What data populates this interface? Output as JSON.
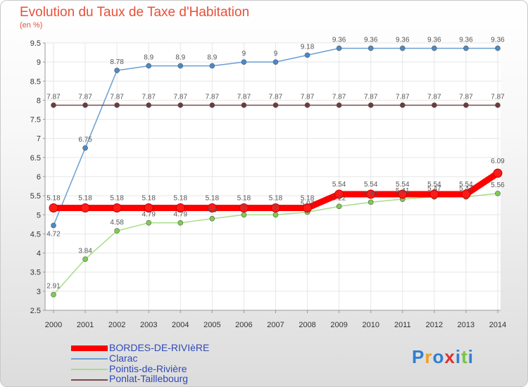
{
  "title": "Evolution du Taux de Taxe d'Habitation",
  "subtitle": "(en %)",
  "brand": "Proxiti",
  "chart_data": {
    "type": "line",
    "title": "Evolution du Taux de Taxe d'Habitation",
    "ylabel": "(en %)",
    "xlabel": "",
    "ylim": [
      2.5,
      9.5
    ],
    "yticks": [
      "2.5",
      "3",
      "3.5",
      "4",
      "4.5",
      "5",
      "5.5",
      "6",
      "6.5",
      "7",
      "7.5",
      "8",
      "8.5",
      "9",
      "9.5"
    ],
    "categories": [
      "2000",
      "2001",
      "2002",
      "2003",
      "2004",
      "2005",
      "2006",
      "2007",
      "2008",
      "2009",
      "2010",
      "2011",
      "2012",
      "2013",
      "2014"
    ],
    "series": [
      {
        "name": "Clarac",
        "color": "#6b9fd4",
        "marker": "#4a8ac9",
        "values": [
          4.72,
          6.75,
          8.78,
          8.9,
          8.9,
          8.9,
          9,
          9,
          9.18,
          9.36,
          9.36,
          9.36,
          9.36,
          9.36,
          9.36
        ],
        "labels": [
          "4.72",
          "6.75",
          "8.78",
          "8.9",
          "8.9",
          "8.9",
          "9",
          "9",
          "9.18",
          "9.36",
          "9.36",
          "9.36",
          "9.36",
          "9.36",
          "9.36"
        ]
      },
      {
        "name": "Pointis-de-Rivière",
        "color": "#a8dd8a",
        "marker": "#7ccf4a",
        "values": [
          2.91,
          3.84,
          4.58,
          4.79,
          4.79,
          4.9,
          5.0,
          5.0,
          5.07,
          5.22,
          5.33,
          5.41,
          5.47,
          5.47,
          5.56
        ],
        "labels": [
          "2.91",
          "3.84",
          "4.58",
          "4.79",
          "4.79",
          "4.9",
          "5",
          "5",
          "5.07",
          "5.22",
          "5.33",
          "5.41",
          "5.47",
          "5.47",
          "5.56"
        ]
      },
      {
        "name": "Ponlat-Taillebourg",
        "color": "#7a4a4a",
        "marker": "#6e3b3b",
        "values": [
          7.87,
          7.87,
          7.87,
          7.87,
          7.87,
          7.87,
          7.87,
          7.87,
          7.87,
          7.87,
          7.87,
          7.87,
          7.87,
          7.87,
          7.87
        ],
        "labels": [
          "7.87",
          "7.87",
          "7.87",
          "7.87",
          "7.87",
          "7.87",
          "7.87",
          "7.87",
          "7.87",
          "7.87",
          "7.87",
          "7.87",
          "7.87",
          "7.87",
          "7.87"
        ]
      },
      {
        "name": "BORDES-DE-RIVIèRE",
        "color": "#ff0000",
        "marker": "#ff1a1a",
        "values": [
          5.18,
          5.18,
          5.18,
          5.18,
          5.18,
          5.18,
          5.18,
          5.18,
          5.18,
          5.54,
          5.54,
          5.54,
          5.54,
          5.54,
          6.09
        ],
        "labels": [
          "5.18",
          "5.18",
          "5.18",
          "5.18",
          "5.18",
          "5.18",
          "5.18",
          "5.18",
          "5.18",
          "5.54",
          "5.54",
          "5.54",
          "5.54",
          "5.54",
          "6.09"
        ]
      }
    ],
    "legend": [
      "BORDES-DE-RIVIèRE",
      "Clarac",
      "Pointis-de-Rivière",
      "Ponlat-Taillebourg"
    ]
  }
}
